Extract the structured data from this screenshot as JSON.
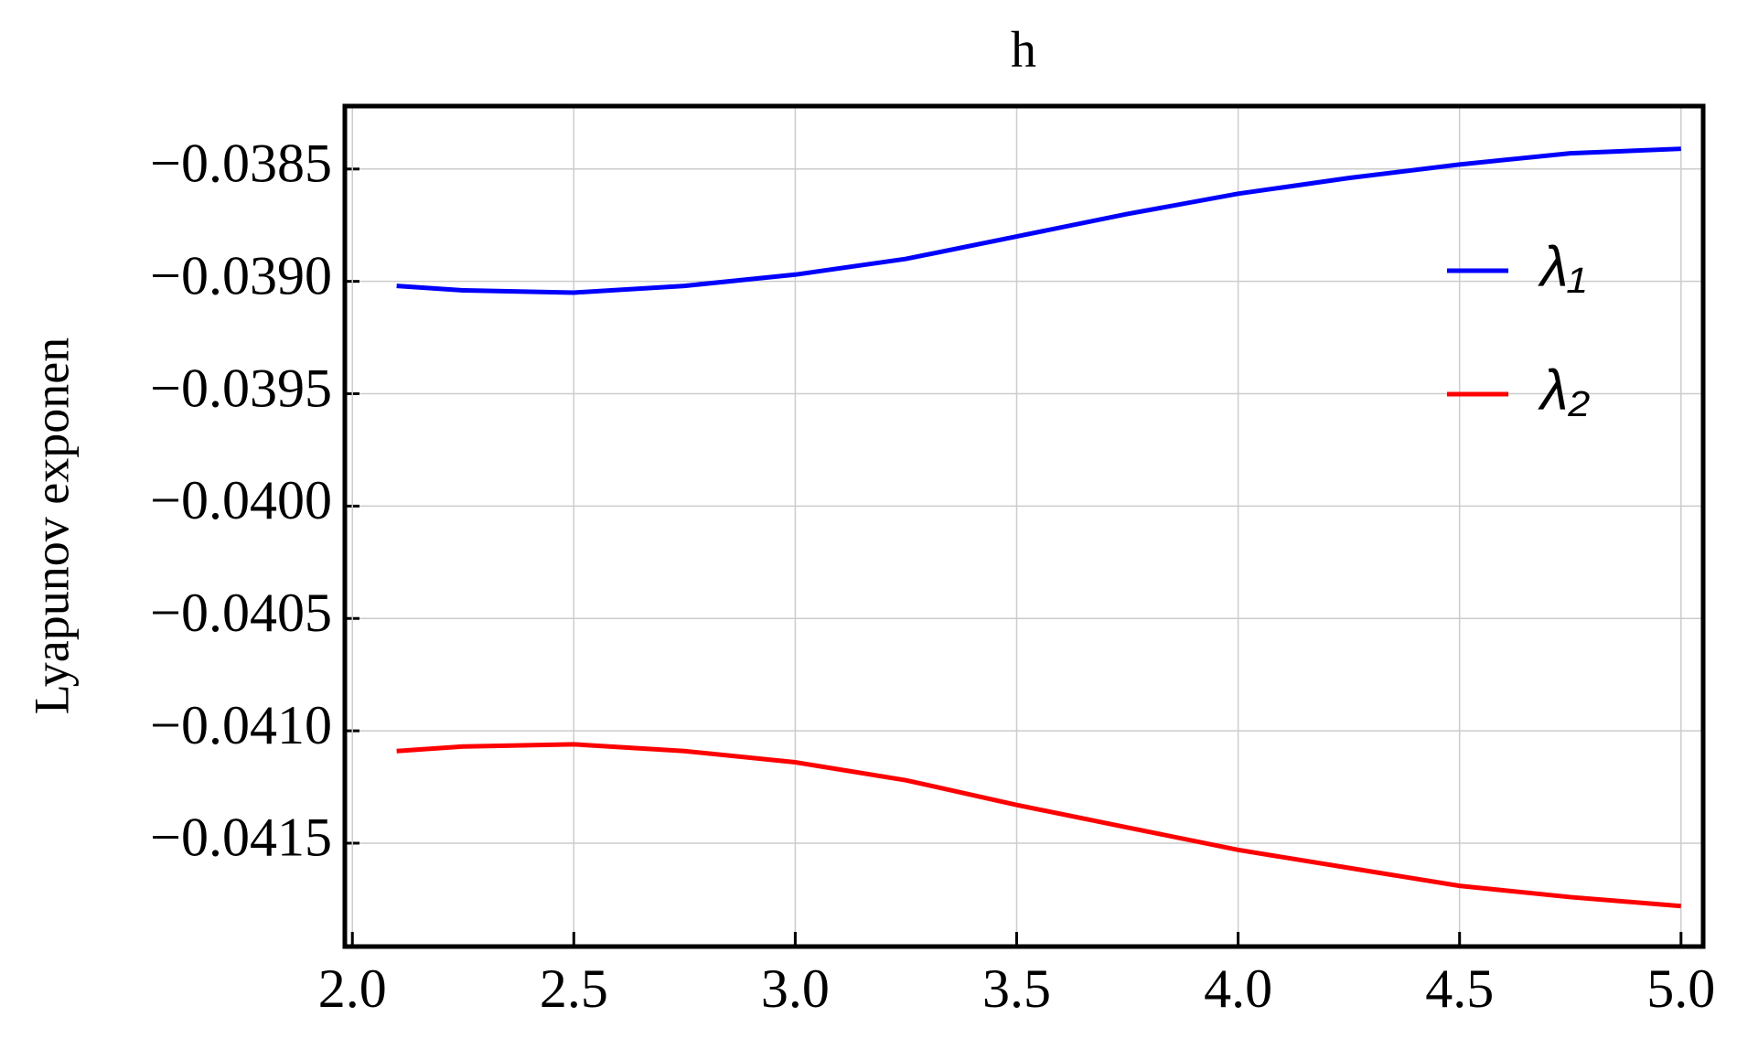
{
  "chart_data": {
    "type": "line",
    "title": "h",
    "y_label": "Lyapunov exponen",
    "x": [
      2.1,
      2.25,
      2.5,
      2.75,
      3.0,
      3.25,
      3.5,
      3.75,
      4.0,
      4.25,
      4.5,
      4.75,
      5.0
    ],
    "series": [
      {
        "name": "λ₁",
        "color": "#0000ff",
        "values": [
          -0.03902,
          -0.03904,
          -0.03905,
          -0.03902,
          -0.03897,
          -0.0389,
          -0.0388,
          -0.0387,
          -0.03861,
          -0.03854,
          -0.03848,
          -0.03843,
          -0.03841
        ]
      },
      {
        "name": "λ₂",
        "color": "#ff0000",
        "values": [
          -0.04109,
          -0.04107,
          -0.04106,
          -0.04109,
          -0.04114,
          -0.04122,
          -0.04133,
          -0.04143,
          -0.04153,
          -0.04161,
          -0.04169,
          -0.04174,
          -0.04178
        ]
      }
    ],
    "xlim": [
      1.983,
      5.05
    ],
    "xticks": [
      {
        "value": 2,
        "label": "2.0"
      },
      2.5,
      {
        "value": 3,
        "label": "3.0"
      },
      3.5,
      {
        "value": 4,
        "label": "4.0"
      },
      4.5,
      {
        "value": 5,
        "label": "5.0"
      }
    ],
    "ylim": [
      -0.04196,
      -0.03822
    ],
    "yticks": [
      {
        "value": -0.0385,
        "label": "−0.0385"
      },
      {
        "value": -0.039,
        "label": "−0.0390"
      },
      {
        "value": -0.0395,
        "label": "−0.0395"
      },
      {
        "value": -0.04,
        "label": "−0.0400"
      },
      {
        "value": -0.0405,
        "label": "−0.0405"
      },
      {
        "value": -0.041,
        "label": "−0.0410"
      },
      {
        "value": -0.0415,
        "label": "−0.0415"
      }
    ],
    "grid": true,
    "legend": "right"
  }
}
